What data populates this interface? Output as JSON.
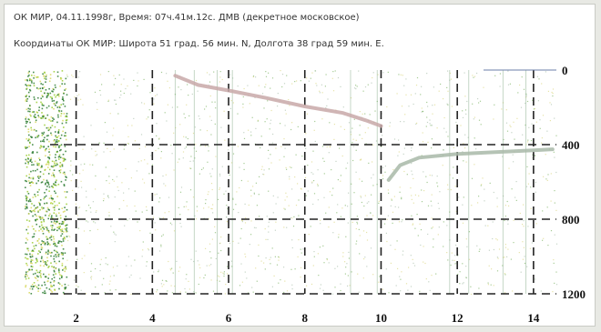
{
  "header": {
    "line1": "ОК МИР, 04.11.1998г, Время: 07ч.41м.12с. ДМВ (декретное московское)",
    "line2": "Координаты ОК МИР: Широта 51 град. 56 мин. N, Долгота 38 град 59 мин. E."
  },
  "chart_data": {
    "type": "heatmap",
    "title": "",
    "xlabel": "",
    "ylabel": "",
    "x_ticks": [
      "2",
      "4",
      "6",
      "8",
      "10",
      "12",
      "14"
    ],
    "y_ticks": [
      "0",
      "400",
      "800",
      "1200"
    ],
    "xlim": [
      0.6,
      14.6
    ],
    "ylim": [
      0,
      1200
    ],
    "y_inverted": true,
    "grid": "dashed",
    "trace_colors": {
      "points": "#2e8b57",
      "yellow": "#c9c95a",
      "curve": "#c8a8a8",
      "curve_right": "#a8b8a8"
    },
    "curves": [
      {
        "name": "",
        "points": [
          [
            4.6,
            30
          ],
          [
            5.2,
            80
          ],
          [
            6.0,
            110
          ],
          [
            7.0,
            150
          ],
          [
            8.0,
            195
          ],
          [
            9.0,
            230
          ],
          [
            9.6,
            270
          ],
          [
            10.0,
            300
          ]
        ]
      },
      {
        "name": "",
        "points": [
          [
            10.2,
            590
          ],
          [
            10.5,
            510
          ],
          [
            11.0,
            470
          ],
          [
            12.0,
            450
          ],
          [
            13.0,
            440
          ],
          [
            14.0,
            430
          ],
          [
            14.5,
            425
          ]
        ]
      }
    ]
  }
}
